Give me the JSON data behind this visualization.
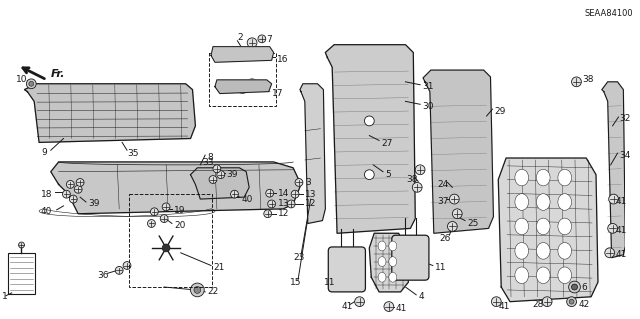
{
  "bg_color": "#ffffff",
  "line_color": "#1a1a1a",
  "text_color": "#1a1a1a",
  "fig_width": 6.4,
  "fig_height": 3.19,
  "dpi": 100,
  "diagram_ref": "SEAA84100"
}
